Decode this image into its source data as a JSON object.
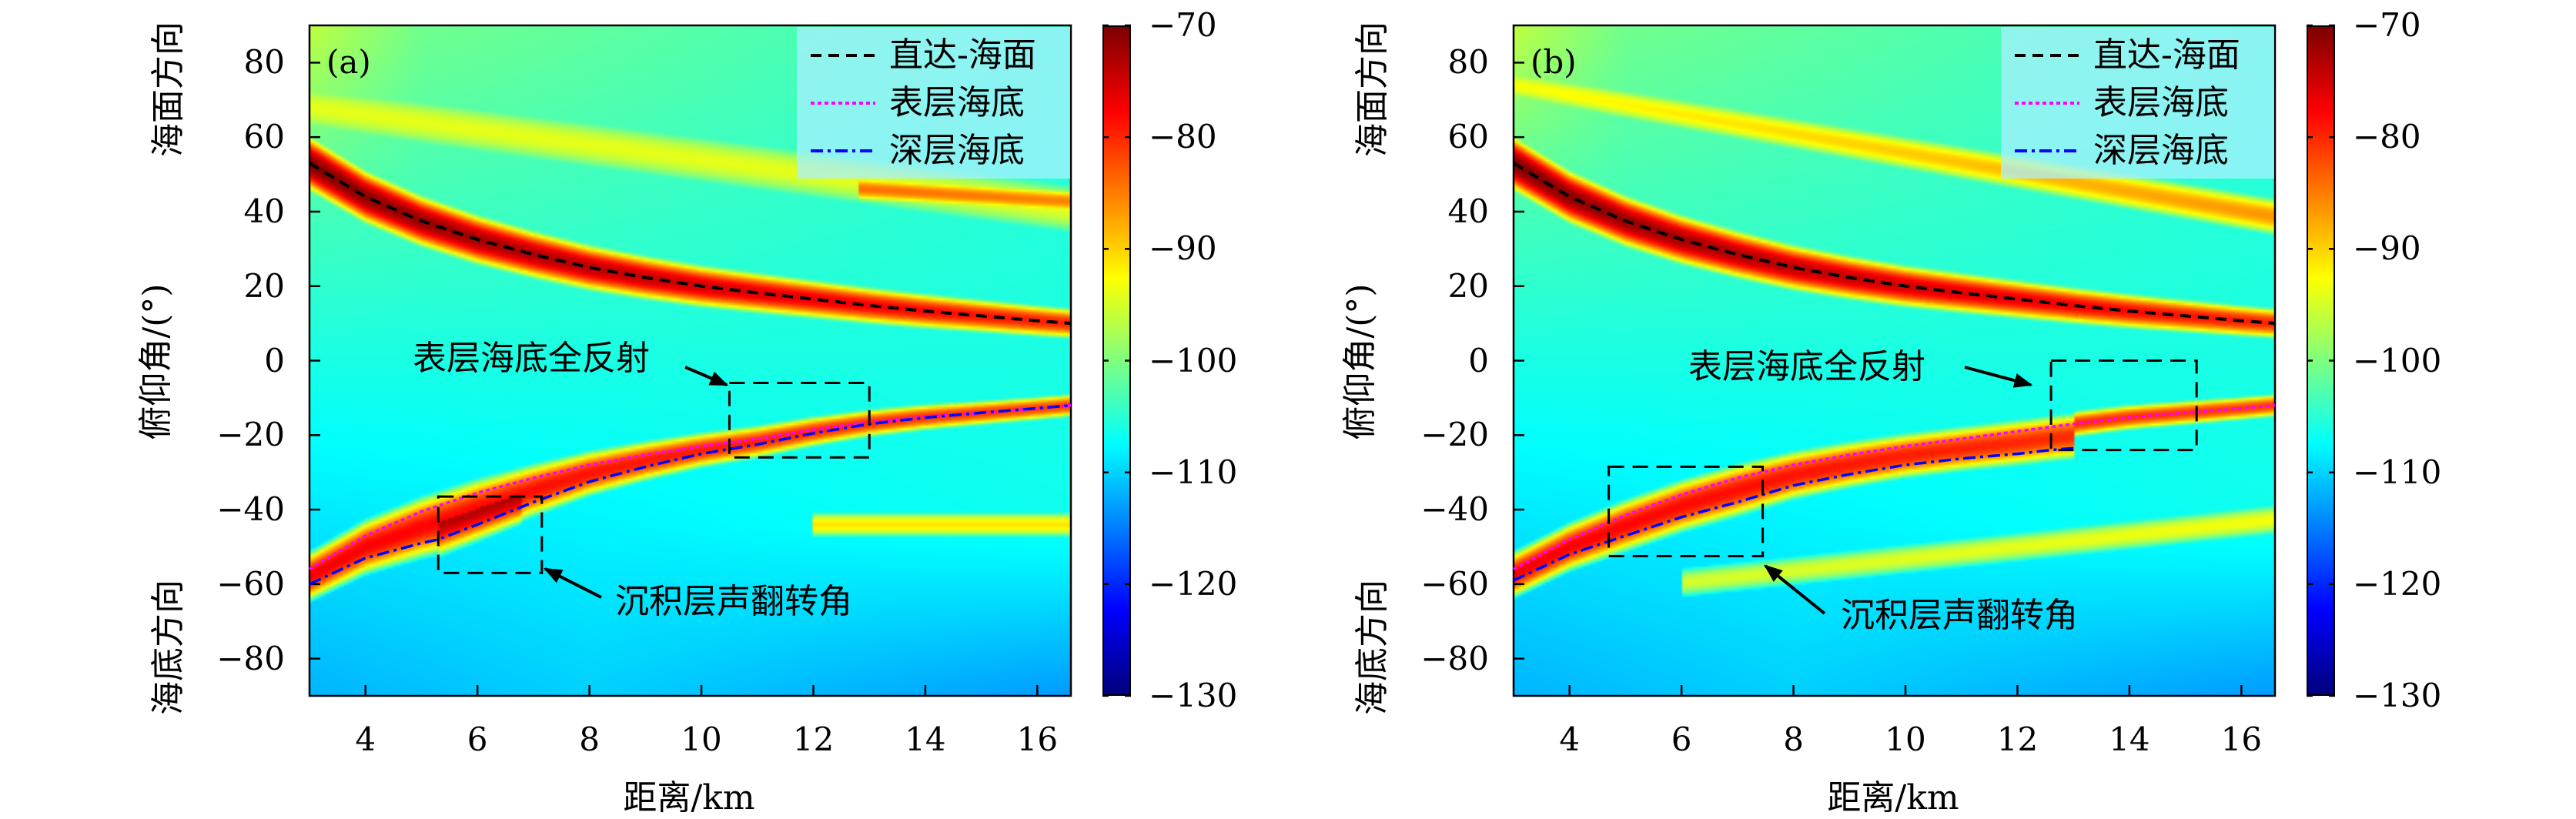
{
  "chart_data": [
    {
      "type": "heatmap",
      "panel_label": "(a)",
      "xlabel": "距离/km",
      "ylabel": "俯仰角/(°)",
      "ylabel_top": "海面方向",
      "ylabel_bottom": "海底方向",
      "xlim": [
        3,
        16.6
      ],
      "ylim": [
        -90,
        90
      ],
      "xticks": [
        4,
        6,
        8,
        10,
        12,
        14,
        16
      ],
      "yticks": [
        80,
        60,
        40,
        20,
        0,
        -20,
        -40,
        -60,
        -80
      ],
      "colorbar": {
        "range": [
          -130,
          -70
        ],
        "ticks": [
          -70,
          -80,
          -90,
          -100,
          -110,
          -120,
          -130
        ],
        "colormap": "jet"
      },
      "legend_position": "top-right",
      "series": [
        {
          "name": "直达-海面",
          "color": "#000000",
          "style": "dashed",
          "x": [
            3,
            4,
            5,
            6,
            7,
            8,
            9,
            10,
            11,
            12,
            13,
            14,
            15,
            16,
            16.6
          ],
          "y": [
            53,
            44,
            37.5,
            32.5,
            28.5,
            25,
            22.3,
            20,
            18.2,
            16.5,
            14.8,
            13.3,
            12,
            10.7,
            10
          ]
        },
        {
          "name": "表层海底",
          "color": "#ff00ff",
          "style": "dotted",
          "x": [
            3,
            4,
            5,
            6,
            7,
            8,
            9,
            10,
            11,
            12,
            13,
            14,
            15,
            16,
            16.6
          ],
          "y": [
            -56,
            -47,
            -40.5,
            -35.5,
            -31.5,
            -28,
            -25.3,
            -23,
            -21,
            -18.5,
            -16.5,
            -15,
            -14,
            -12.8,
            -12
          ]
        },
        {
          "name": "深层海底",
          "color": "#0000ff",
          "style": "dashdot",
          "x": [
            3,
            4,
            5,
            5.3,
            6,
            7,
            8,
            9,
            10,
            11,
            12,
            13,
            14,
            15,
            16,
            16.6
          ],
          "y": [
            -60,
            -53,
            -49,
            -48,
            -44,
            -38,
            -32.5,
            -28.5,
            -25,
            -22.5,
            -19.5,
            -17,
            -15.3,
            -14,
            -12.8,
            -12
          ]
        }
      ],
      "annotations": [
        {
          "text": "表层海底全反射",
          "box_x": [
            10.5,
            13.0
          ],
          "box_y": [
            -26,
            -6
          ]
        },
        {
          "text": "沉积层声翻转角",
          "box_x": [
            5.3,
            7.15
          ],
          "box_y": [
            -57,
            -36.5
          ]
        }
      ]
    },
    {
      "type": "heatmap",
      "panel_label": "(b)",
      "xlabel": "距离/km",
      "ylabel": "俯仰角/(°)",
      "ylabel_top": "海面方向",
      "ylabel_bottom": "海底方向",
      "xlim": [
        3,
        16.6
      ],
      "ylim": [
        -90,
        90
      ],
      "xticks": [
        4,
        6,
        8,
        10,
        12,
        14,
        16
      ],
      "yticks": [
        80,
        60,
        40,
        20,
        0,
        -20,
        -40,
        -60,
        -80
      ],
      "colorbar": {
        "range": [
          -130,
          -70
        ],
        "ticks": [
          -70,
          -80,
          -90,
          -100,
          -110,
          -120,
          -130
        ],
        "colormap": "jet"
      },
      "legend_position": "top-right",
      "series": [
        {
          "name": "直达-海面",
          "color": "#000000",
          "style": "dashed",
          "x": [
            3,
            4,
            5,
            6,
            7,
            8,
            9,
            10,
            11,
            12,
            13,
            14,
            15,
            16,
            16.6
          ],
          "y": [
            53,
            44,
            37.5,
            32.5,
            28.5,
            25,
            22.3,
            20,
            18.2,
            16.5,
            14.8,
            13.3,
            12,
            10.7,
            10
          ]
        },
        {
          "name": "表层海底",
          "color": "#ff00ff",
          "style": "dotted",
          "x": [
            3,
            4,
            5,
            6,
            7,
            8,
            9,
            10,
            11,
            12,
            13,
            14,
            15,
            16,
            16.6
          ],
          "y": [
            -56,
            -48,
            -41.5,
            -36,
            -31.5,
            -28,
            -25.3,
            -23,
            -21,
            -19,
            -17,
            -15.2,
            -14,
            -12.8,
            -12
          ]
        },
        {
          "name": "深层海底",
          "color": "#0000ff",
          "style": "dashdot",
          "x": [
            3,
            4,
            5,
            6,
            7,
            8,
            9,
            10,
            11,
            12,
            12.6,
            13
          ],
          "y": [
            -59,
            -52,
            -47,
            -42,
            -38,
            -33.5,
            -30.5,
            -28,
            -26.3,
            -25,
            -24,
            -23.5
          ]
        }
      ],
      "annotations": [
        {
          "text": "表层海底全反射",
          "box_x": [
            12.6,
            15.2
          ],
          "box_y": [
            -24,
            0
          ]
        },
        {
          "text": "沉积层声翻转角",
          "box_x": [
            4.7,
            7.45
          ],
          "box_y": [
            -52.5,
            -28.5
          ]
        }
      ]
    }
  ]
}
